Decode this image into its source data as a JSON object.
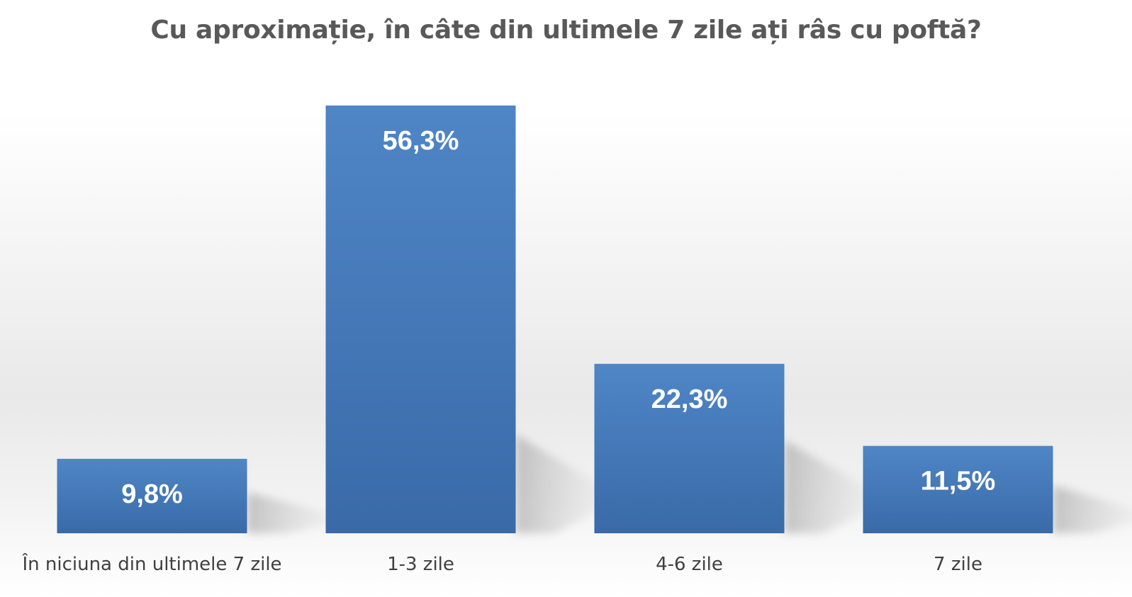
{
  "chart_data": {
    "type": "bar",
    "title": "Cu aproximație, în câte din ultimele 7 zile ați râs cu poftă?",
    "categories": [
      "În niciuna din ultimele 7 zile",
      "1-3 zile",
      "4-6 zile",
      "7 zile"
    ],
    "values": [
      9.8,
      56.3,
      22.3,
      11.5
    ],
    "value_labels": [
      "9,8%",
      "56,3%",
      "22,3%",
      "11,5%"
    ],
    "unit": "%",
    "xlabel": "",
    "ylabel": "",
    "ylim": [
      0,
      60
    ],
    "grid": false,
    "legend": "none",
    "colors": {
      "bar_top": "#4f86c6",
      "bar_bottom": "#3a6aa8",
      "title": "#595959",
      "category_text": "#404040",
      "value_text": "#ffffff"
    }
  }
}
